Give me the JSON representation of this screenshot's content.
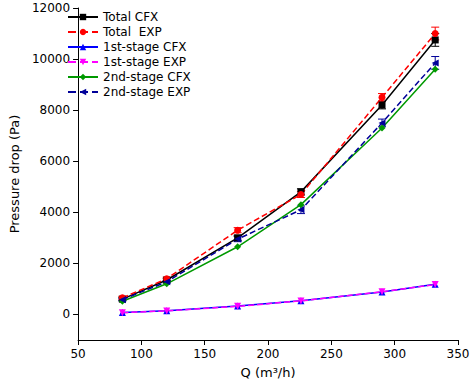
{
  "chart_data": {
    "type": "line",
    "x_label": "Q (m³/h)",
    "y_label": "Pressure drop (Pa)",
    "x": [
      85,
      120,
      176,
      226,
      290,
      332
    ],
    "xlim": [
      50,
      350
    ],
    "xticks": [
      50,
      100,
      150,
      200,
      250,
      300,
      350
    ],
    "ylim": [
      -1000,
      12000
    ],
    "yticks": [
      0,
      2000,
      4000,
      6000,
      8000,
      10000,
      12000
    ],
    "grid": false,
    "legend": "upper left",
    "series": [
      {
        "name": "Total CFX",
        "color": "#000000",
        "marker": "square",
        "line_style": "solid",
        "values": [
          600,
          1350,
          3000,
          4800,
          8200,
          10750
        ],
        "errors": [
          60,
          60,
          100,
          120,
          150,
          250
        ]
      },
      {
        "name": "Total  EXP",
        "color": "#ff0000",
        "marker": "circle",
        "line_style": "dashed",
        "values": [
          650,
          1400,
          3300,
          4700,
          8500,
          11000
        ],
        "errors": [
          60,
          60,
          100,
          120,
          150,
          250
        ]
      },
      {
        "name": "1st-stage CFX",
        "color": "#0000ff",
        "marker": "triangle",
        "line_style": "solid",
        "values": [
          80,
          150,
          330,
          540,
          880,
          1180
        ]
      },
      {
        "name": "1st-stage EXP",
        "color": "#ff00ff",
        "marker": "triangle-down",
        "line_style": "dashed",
        "values": [
          70,
          140,
          320,
          530,
          890,
          1170
        ]
      },
      {
        "name": "2nd-stage CFX",
        "color": "#009900",
        "marker": "diamond",
        "line_style": "solid",
        "values": [
          520,
          1200,
          2650,
          4300,
          7300,
          9600
        ]
      },
      {
        "name": "2nd-stage EXP",
        "color": "#000099",
        "marker": "triangle-left",
        "line_style": "dashed",
        "values": [
          580,
          1280,
          2950,
          4100,
          7500,
          9850
        ],
        "errors": [
          50,
          50,
          100,
          150,
          150,
          250
        ]
      }
    ]
  }
}
